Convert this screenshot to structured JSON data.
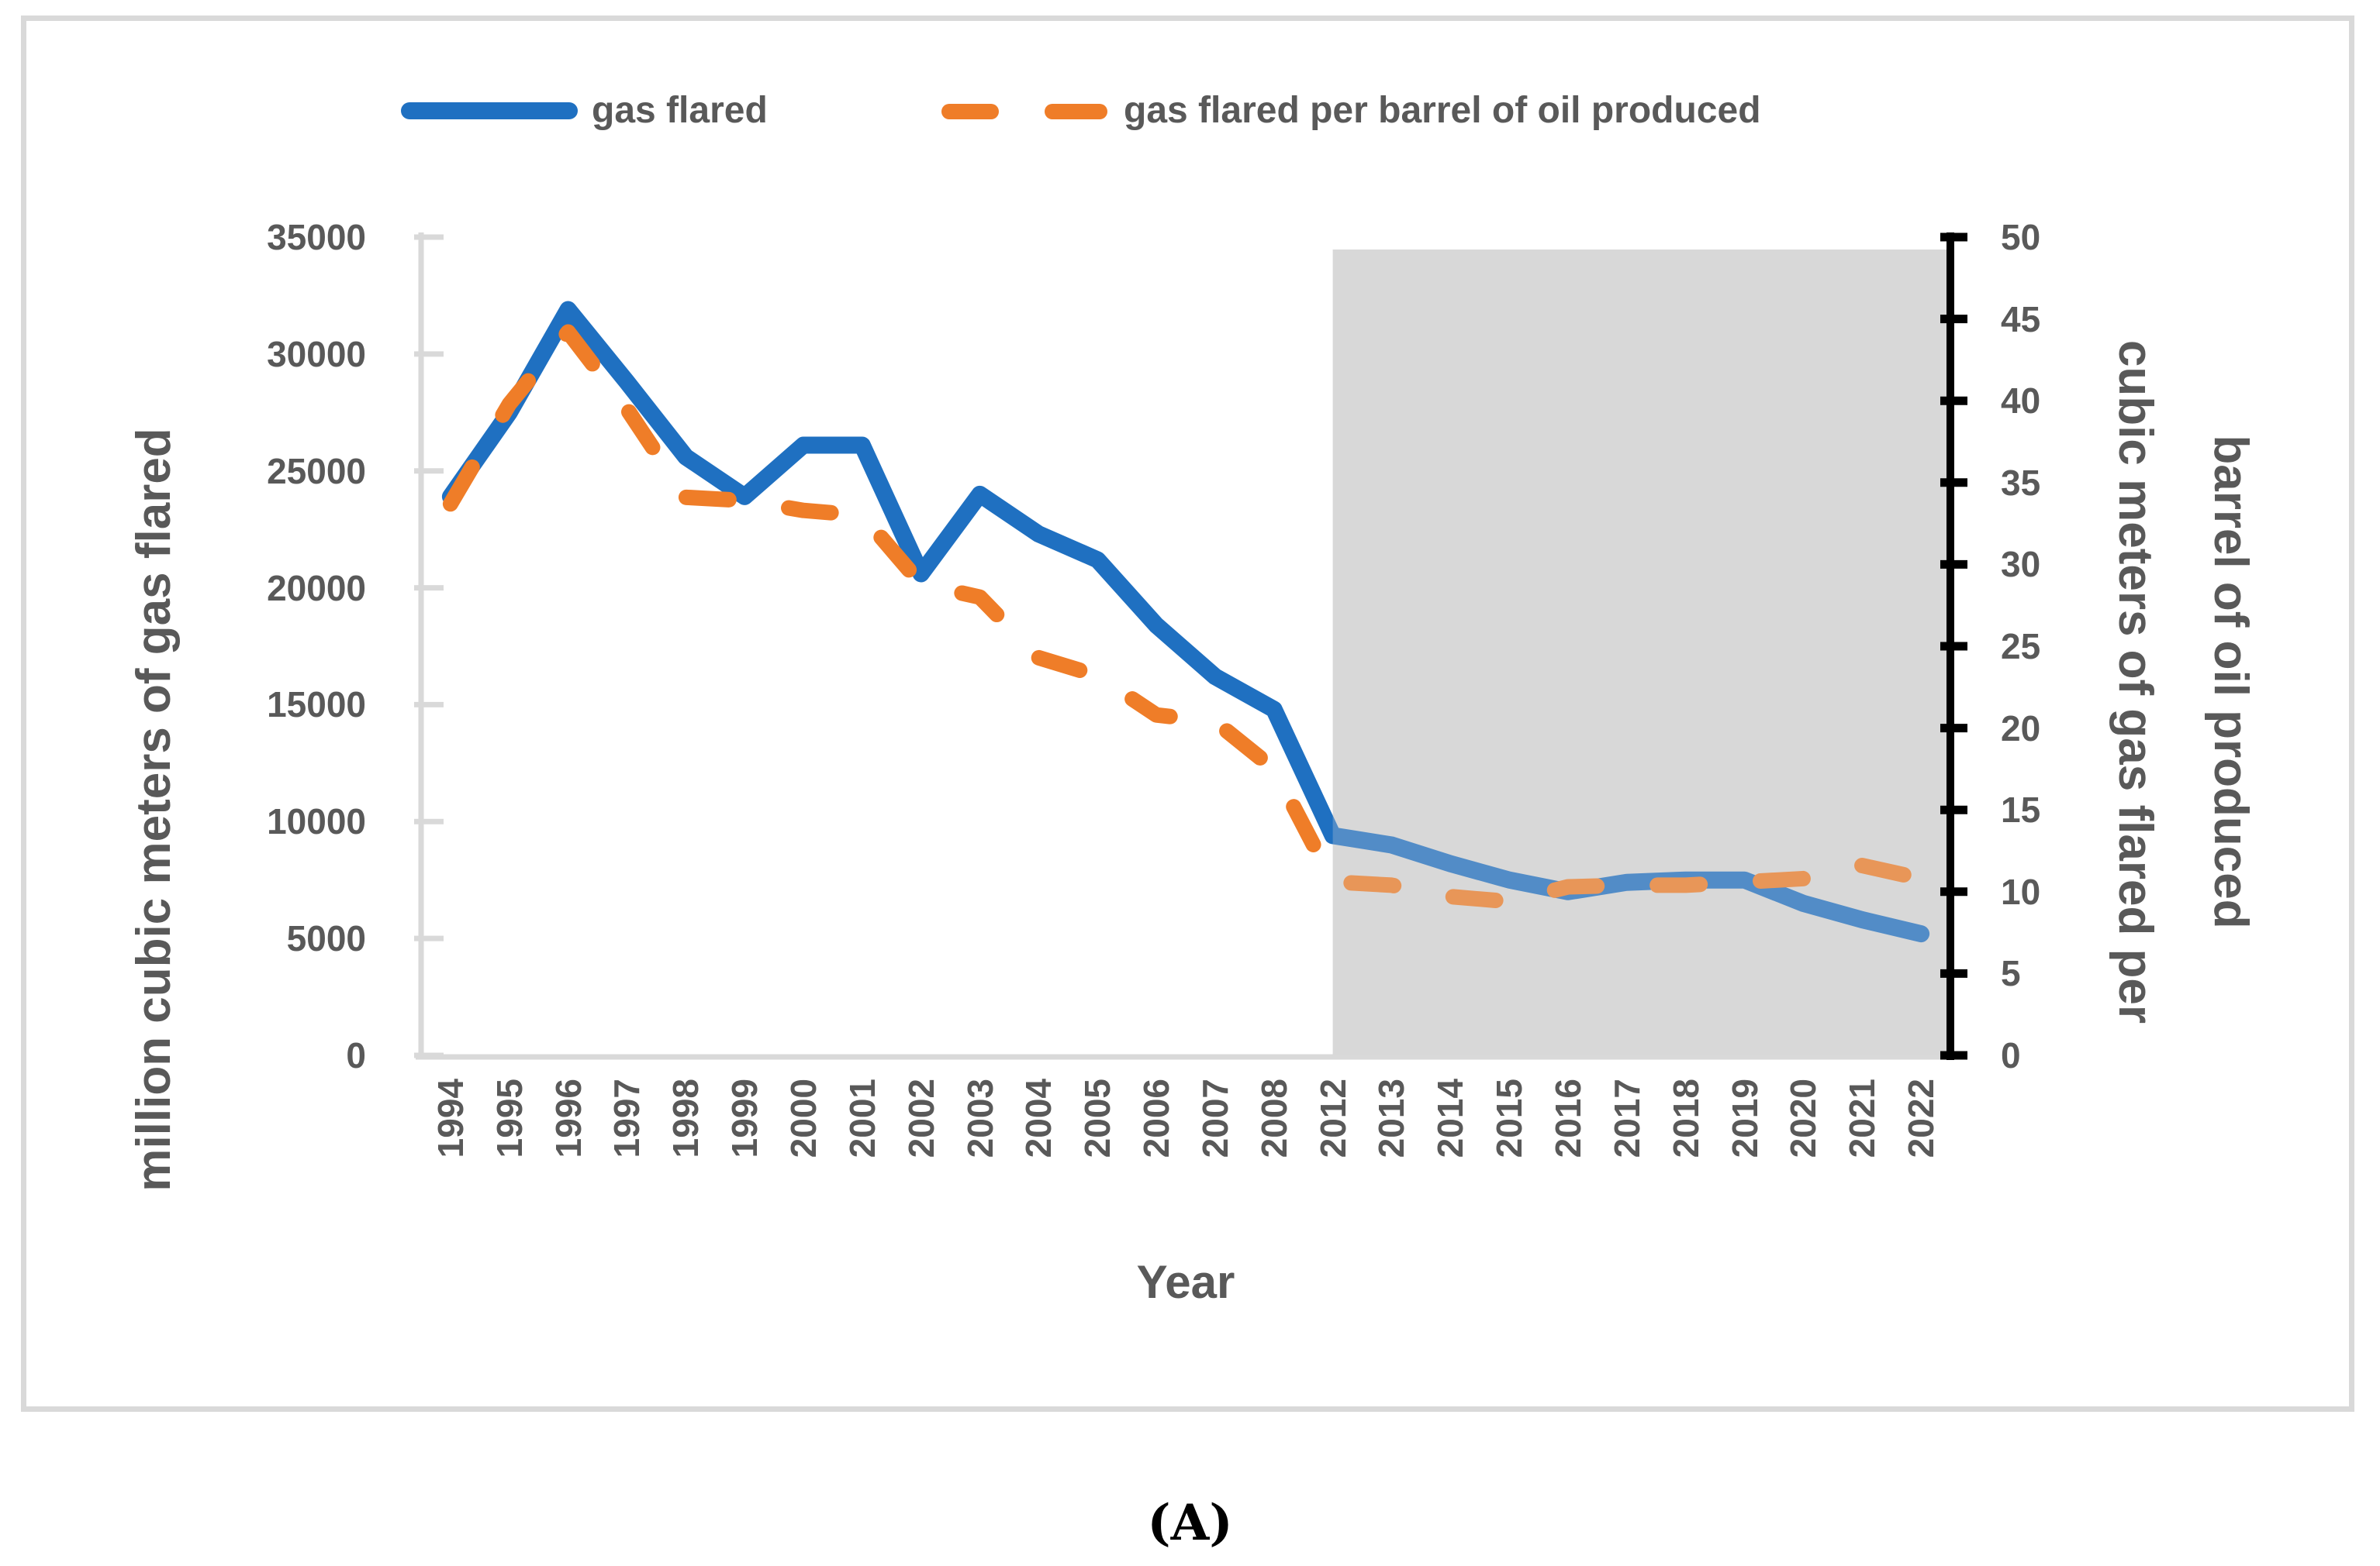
{
  "page": {
    "caption": "(A)"
  },
  "legend": [
    {
      "label": "gas flared"
    },
    {
      "label": "gas flared per barrel of oil produced"
    }
  ],
  "chart_data": {
    "type": "line",
    "title": "",
    "categories": [
      "1994",
      "1995",
      "1996",
      "1997",
      "1998",
      "1999",
      "2000",
      "2001",
      "2002",
      "2003",
      "2004",
      "2005",
      "2006",
      "2007",
      "2008",
      "2012",
      "2013",
      "2014",
      "2015",
      "2016",
      "2017",
      "2018",
      "2019",
      "2020",
      "2021",
      "2022"
    ],
    "series": [
      {
        "name": "gas flared",
        "axis": "left",
        "line_style": "solid",
        "values": [
          23900,
          27500,
          31900,
          28800,
          25600,
          23900,
          26100,
          26100,
          20600,
          24000,
          22300,
          21200,
          18400,
          16200,
          14800,
          9400,
          9000,
          8200,
          7500,
          7000,
          7400,
          7500,
          7500,
          6500,
          5800,
          5200
        ]
      },
      {
        "name": "gas flared per barrel of oil produced",
        "axis": "right",
        "line_style": "dashed",
        "values": [
          33.7,
          39.8,
          44.2,
          39.5,
          34.1,
          33.9,
          33.3,
          33.0,
          28.8,
          28.0,
          24.3,
          23.2,
          20.8,
          20.4,
          17.5,
          10.6,
          10.4,
          9.7,
          9.4,
          10.3,
          10.4,
          10.4,
          10.6,
          10.8,
          11.6,
          10.8
        ]
      }
    ],
    "xlabel": "Year",
    "ylabel_left": "million cubic meters of gas flared",
    "ylabel_right_lines": [
      "cubic meters of gas flared per",
      "barrel of oil produced"
    ],
    "left_axis": {
      "min": 0,
      "max": 35000,
      "step": 5000,
      "tick_labels": [
        "35000",
        "30000",
        "25000",
        "20000",
        "15000",
        "10000",
        "5000",
        "0"
      ]
    },
    "right_axis": {
      "min": 0,
      "max": 50,
      "step": 5,
      "tick_labels": [
        "50",
        "45",
        "40",
        "35",
        "30",
        "25",
        "20",
        "15",
        "10",
        "5",
        "0"
      ]
    },
    "highlight_region": {
      "from_year": "2012",
      "to_year": "2022"
    },
    "grid": "off",
    "legend_position": "top"
  },
  "colors": {
    "series_blue": "#1F70C1",
    "series_orange": "#EF7D28",
    "text": "#595959",
    "axis_gray": "#D9D9D9",
    "band": "#D8D8D8",
    "right_axis": "#000000"
  }
}
